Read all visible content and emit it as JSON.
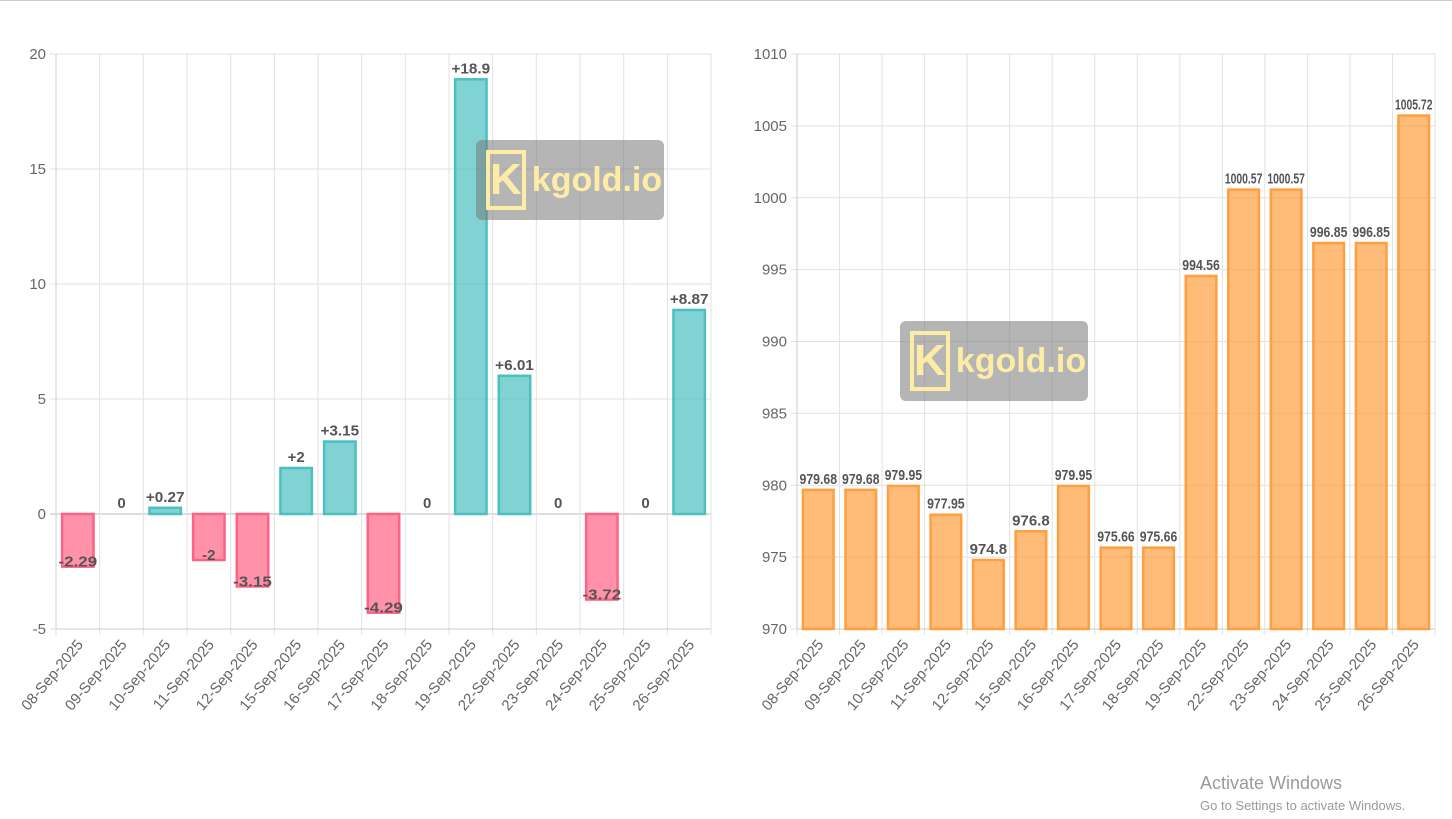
{
  "chart_data": [
    {
      "type": "bar",
      "title": "",
      "categories": [
        "08-Sep-2025",
        "09-Sep-2025",
        "10-Sep-2025",
        "11-Sep-2025",
        "12-Sep-2025",
        "15-Sep-2025",
        "16-Sep-2025",
        "17-Sep-2025",
        "18-Sep-2025",
        "19-Sep-2025",
        "22-Sep-2025",
        "23-Sep-2025",
        "24-Sep-2025",
        "25-Sep-2025",
        "26-Sep-2025"
      ],
      "values": [
        -2.29,
        0,
        0.27,
        -2,
        -3.15,
        2,
        3.15,
        -4.29,
        0,
        18.9,
        6.01,
        0,
        -3.72,
        0,
        8.87
      ],
      "data_labels": [
        "-2.29",
        "0",
        "+0.27",
        "-2",
        "-3.15",
        "+2",
        "+3.15",
        "-4.29",
        "0",
        "+18.9",
        "+6.01",
        "0",
        "-3.72",
        "0",
        "+8.87"
      ],
      "ylim": [
        -5,
        20
      ],
      "yticks": [
        "-5",
        "0",
        "5",
        "10",
        "15",
        "20"
      ],
      "grid": true,
      "colors": {
        "positive": "#4bc0c0",
        "negative": "#ff6384"
      }
    },
    {
      "type": "bar",
      "title": "",
      "categories": [
        "08-Sep-2025",
        "09-Sep-2025",
        "10-Sep-2025",
        "11-Sep-2025",
        "12-Sep-2025",
        "15-Sep-2025",
        "16-Sep-2025",
        "17-Sep-2025",
        "18-Sep-2025",
        "19-Sep-2025",
        "22-Sep-2025",
        "23-Sep-2025",
        "24-Sep-2025",
        "25-Sep-2025",
        "26-Sep-2025"
      ],
      "values": [
        979.68,
        979.68,
        979.95,
        977.95,
        974.8,
        976.8,
        979.95,
        975.66,
        975.66,
        994.56,
        1000.57,
        1000.57,
        996.85,
        996.85,
        1005.72
      ],
      "data_labels": [
        "979.68",
        "979.68",
        "979.95",
        "977.95",
        "974.8",
        "976.8",
        "979.95",
        "975.66",
        "975.66",
        "994.56",
        "1000.57",
        "1000.57",
        "996.85",
        "996.85",
        "1005.72"
      ],
      "ylim": [
        970,
        1010
      ],
      "yticks": [
        "970",
        "975",
        "980",
        "985",
        "990",
        "995",
        "1000",
        "1005",
        "1010"
      ],
      "grid": true,
      "colors": {
        "bar": "#ff9f40"
      }
    }
  ],
  "watermark": {
    "letter": "K",
    "text": "kgold.io"
  },
  "activation": {
    "title": "Activate Windows",
    "subtitle": "Go to Settings to activate Windows."
  }
}
